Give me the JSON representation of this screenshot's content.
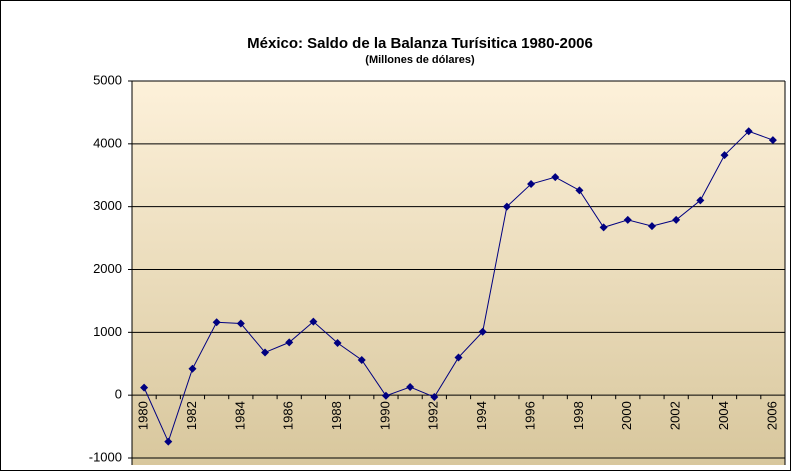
{
  "chart_data": {
    "type": "line",
    "title": "México: Saldo de la Balanza Turísitica 1980-2006",
    "subtitle": "(Millones de dólares)",
    "categories": [
      "1980",
      null,
      "1982",
      null,
      "1984",
      null,
      "1986",
      null,
      "1988",
      null,
      "1990",
      null,
      "1992",
      null,
      "1994",
      null,
      "1996",
      null,
      "1998",
      null,
      "2000",
      null,
      "2002",
      null,
      "2004",
      null,
      "2006"
    ],
    "values": [
      120,
      -740,
      420,
      1160,
      1140,
      680,
      840,
      1170,
      830,
      560,
      -10,
      130,
      -30,
      600,
      1010,
      3000,
      3360,
      3470,
      3260,
      2670,
      2790,
      2690,
      2790,
      3100,
      3820,
      4200,
      4060
    ],
    "color": "#000080",
    "ylim": [
      -1000,
      5000
    ],
    "yticks": [
      -1000,
      0,
      1000,
      2000,
      3000,
      4000,
      5000
    ],
    "grid": true
  }
}
